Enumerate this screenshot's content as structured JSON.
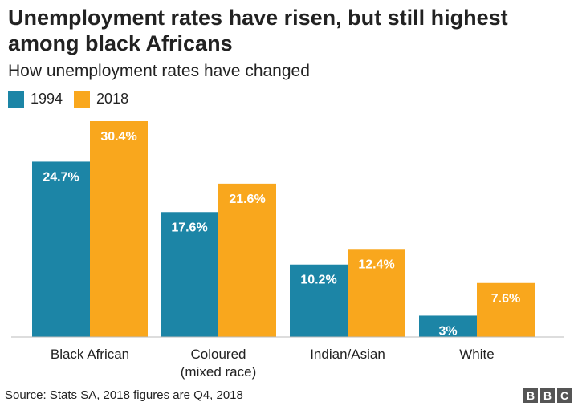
{
  "chart_data": {
    "type": "bar",
    "title": "Unemployment rates have risen, but still highest among black Africans",
    "subtitle": "How unemployment rates have changed",
    "categories": [
      "Black African",
      "Coloured\n(mixed race)",
      "Indian/Asian",
      "White"
    ],
    "series": [
      {
        "name": "1994",
        "color": "#1c85a6",
        "values": [
          24.7,
          17.6,
          10.2,
          3
        ],
        "labels": [
          "24.7%",
          "17.6%",
          "10.2%",
          "3%"
        ]
      },
      {
        "name": "2018",
        "color": "#f9a71d",
        "values": [
          30.4,
          21.6,
          12.4,
          7.6
        ],
        "labels": [
          "30.4%",
          "21.6%",
          "12.4%",
          "7.6%"
        ]
      }
    ],
    "ylim": [
      0,
      30.4
    ],
    "grid": false,
    "legend": "top-left",
    "source": "Source: Stats SA, 2018 figures are Q4, 2018"
  },
  "logo": [
    "B",
    "B",
    "C"
  ]
}
